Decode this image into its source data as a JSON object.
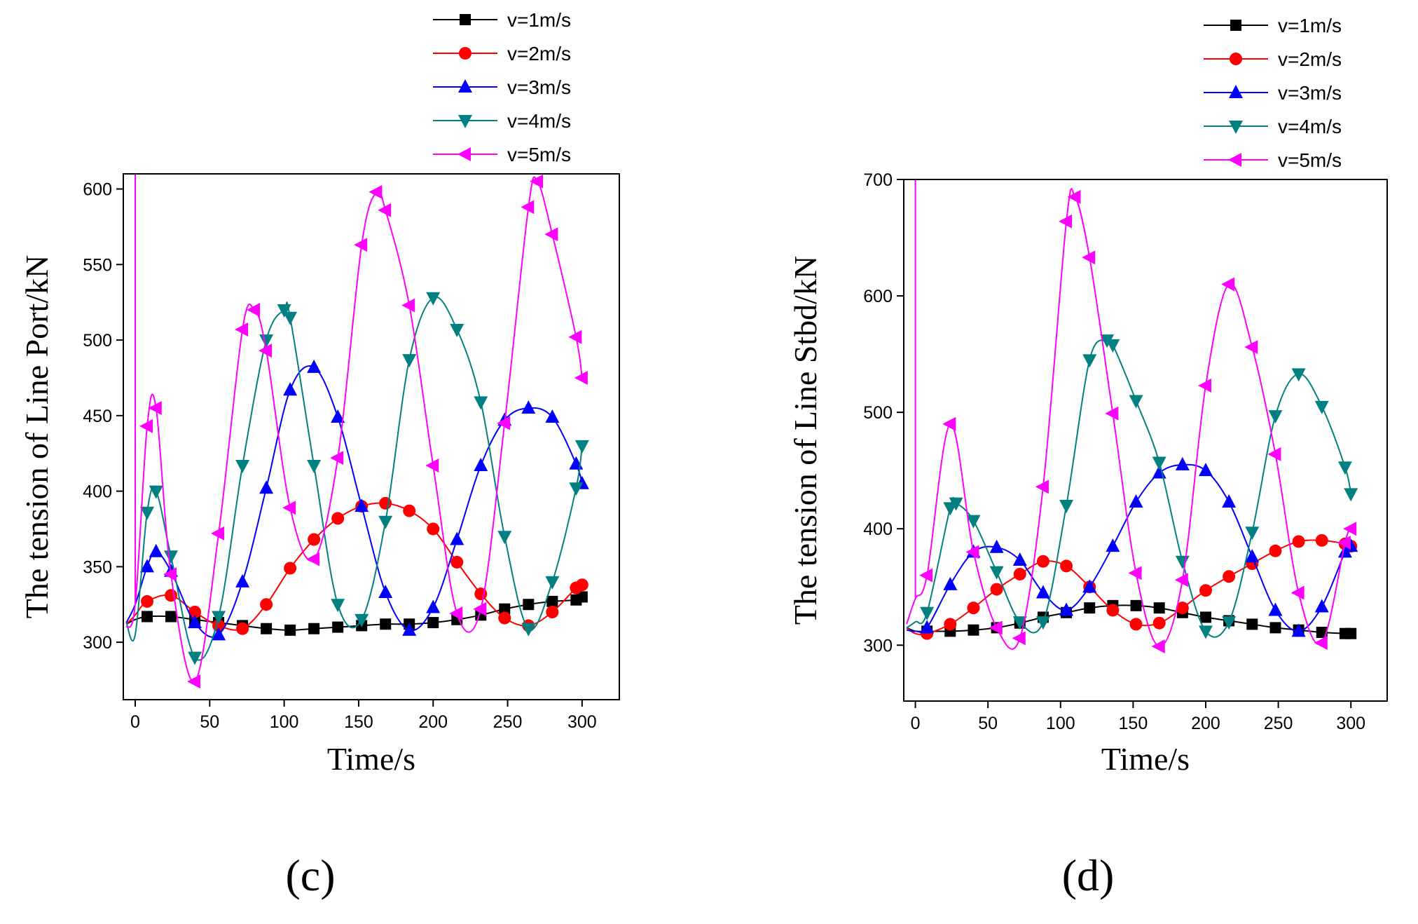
{
  "chart_data": [
    {
      "type": "line",
      "panel_label": "(c)",
      "title": "",
      "xlabel": "Time/s",
      "ylabel": "The tension of Line Port/kN",
      "xlim": [
        -8,
        325
      ],
      "ylim": [
        262,
        610
      ],
      "xticks": [
        0,
        50,
        100,
        150,
        200,
        250,
        300
      ],
      "yticks": [
        300,
        350,
        400,
        450,
        500,
        550,
        600
      ],
      "legend_position": "top-right",
      "series": [
        {
          "name": "v=1m/s",
          "color": "#000000",
          "marker": "square",
          "x": [
            -6,
            0,
            8,
            24,
            40,
            56,
            72,
            88,
            104,
            120,
            136,
            152,
            168,
            184,
            200,
            216,
            232,
            248,
            264,
            280,
            296,
            300
          ],
          "y": [
            312,
            315,
            317,
            317,
            315,
            313,
            311,
            309,
            308,
            309,
            310,
            311,
            312,
            312,
            313,
            315,
            318,
            322,
            325,
            327,
            328,
            330
          ]
        },
        {
          "name": "v=2m/s",
          "color": "#ff0000",
          "marker": "circle",
          "x": [
            -6,
            0,
            8,
            24,
            40,
            56,
            72,
            88,
            104,
            120,
            136,
            152,
            168,
            184,
            200,
            216,
            232,
            248,
            264,
            280,
            296,
            300
          ],
          "y": [
            312,
            318,
            327,
            331,
            320,
            311,
            309,
            325,
            349,
            368,
            382,
            390,
            392,
            387,
            375,
            353,
            332,
            316,
            311,
            320,
            336,
            338
          ]
        },
        {
          "name": "v=3m/s",
          "color": "#0000ff",
          "marker": "triangle-up",
          "x": [
            -6,
            0,
            8,
            14,
            24,
            40,
            56,
            72,
            88,
            104,
            120,
            136,
            152,
            168,
            184,
            200,
            216,
            232,
            248,
            264,
            280,
            296,
            300
          ],
          "y": [
            313,
            325,
            350,
            360,
            347,
            313,
            305,
            340,
            402,
            467,
            482,
            449,
            390,
            333,
            308,
            323,
            368,
            417,
            447,
            455,
            449,
            418,
            405
          ]
        },
        {
          "name": "v=4m/s",
          "color": "#008080",
          "marker": "triangle-down",
          "x": [
            -6,
            0,
            8,
            14,
            24,
            40,
            56,
            72,
            88,
            100,
            104,
            120,
            136,
            152,
            168,
            184,
            200,
            216,
            232,
            248,
            264,
            280,
            296,
            300
          ],
          "y": [
            313,
            305,
            386,
            400,
            357,
            290,
            317,
            417,
            500,
            520,
            515,
            417,
            325,
            315,
            380,
            487,
            528,
            507,
            459,
            370,
            309,
            340,
            402,
            430
          ]
        },
        {
          "name": "v=5m/s",
          "color": "#ff00ff",
          "marker": "triangle-left",
          "x": [
            -6,
            0,
            8,
            14,
            24,
            40,
            56,
            72,
            80,
            88,
            104,
            120,
            136,
            152,
            162,
            168,
            184,
            200,
            216,
            232,
            248,
            264,
            270,
            280,
            296,
            300
          ],
          "y": [
            310,
            325,
            443,
            455,
            345,
            274,
            372,
            507,
            520,
            493,
            389,
            355,
            422,
            563,
            598,
            586,
            523,
            417,
            319,
            322,
            445,
            588,
            605,
            570,
            502,
            475
          ]
        }
      ]
    },
    {
      "type": "line",
      "panel_label": "(d)",
      "title": "",
      "xlabel": "Time/s",
      "ylabel": "The tension of Line Stbd/kN",
      "xlim": [
        -8,
        325
      ],
      "ylim": [
        252,
        700
      ],
      "xticks": [
        0,
        50,
        100,
        150,
        200,
        250,
        300
      ],
      "yticks": [
        300,
        400,
        500,
        600,
        700
      ],
      "legend_position": "top-right",
      "series": [
        {
          "name": "v=1m/s",
          "color": "#000000",
          "marker": "square",
          "x": [
            -6,
            0,
            8,
            24,
            40,
            56,
            72,
            88,
            104,
            120,
            136,
            152,
            168,
            184,
            200,
            216,
            232,
            248,
            264,
            280,
            296,
            300
          ],
          "y": [
            315,
            312,
            312,
            312,
            313,
            315,
            319,
            324,
            328,
            332,
            334,
            334,
            332,
            328,
            324,
            321,
            318,
            315,
            313,
            311,
            310,
            310
          ]
        },
        {
          "name": "v=2m/s",
          "color": "#ff0000",
          "marker": "circle",
          "x": [
            -6,
            0,
            8,
            24,
            40,
            56,
            72,
            88,
            104,
            120,
            136,
            152,
            168,
            184,
            200,
            216,
            232,
            248,
            264,
            280,
            296,
            300
          ],
          "y": [
            315,
            310,
            310,
            318,
            332,
            348,
            361,
            372,
            368,
            350,
            330,
            318,
            319,
            332,
            347,
            359,
            370,
            381,
            389,
            390,
            387,
            385
          ]
        },
        {
          "name": "v=3m/s",
          "color": "#0000ff",
          "marker": "triangle-up",
          "x": [
            -6,
            0,
            8,
            24,
            40,
            56,
            72,
            88,
            104,
            120,
            136,
            152,
            168,
            184,
            200,
            216,
            232,
            248,
            264,
            280,
            296,
            300
          ],
          "y": [
            313,
            312,
            315,
            352,
            380,
            384,
            373,
            345,
            330,
            350,
            385,
            423,
            448,
            455,
            450,
            423,
            376,
            330,
            312,
            333,
            380,
            385
          ]
        },
        {
          "name": "v=4m/s",
          "color": "#008080",
          "marker": "triangle-down",
          "x": [
            -6,
            0,
            8,
            24,
            28,
            40,
            56,
            72,
            88,
            104,
            120,
            132,
            136,
            152,
            168,
            184,
            200,
            216,
            232,
            248,
            264,
            280,
            296,
            300
          ],
          "y": [
            315,
            320,
            328,
            418,
            422,
            407,
            363,
            320,
            320,
            420,
            545,
            562,
            558,
            510,
            457,
            372,
            312,
            320,
            397,
            497,
            533,
            505,
            453,
            430
          ]
        },
        {
          "name": "v=5m/s",
          "color": "#ff00ff",
          "marker": "triangle-left",
          "x": [
            -6,
            0,
            8,
            24,
            40,
            56,
            72,
            88,
            104,
            110,
            120,
            136,
            152,
            168,
            184,
            200,
            216,
            232,
            248,
            264,
            280,
            296,
            300
          ],
          "y": [
            318,
            340,
            360,
            490,
            380,
            315,
            306,
            436,
            664,
            685,
            633,
            499,
            362,
            299,
            356,
            523,
            610,
            556,
            464,
            345,
            302,
            388,
            400
          ]
        }
      ]
    }
  ]
}
